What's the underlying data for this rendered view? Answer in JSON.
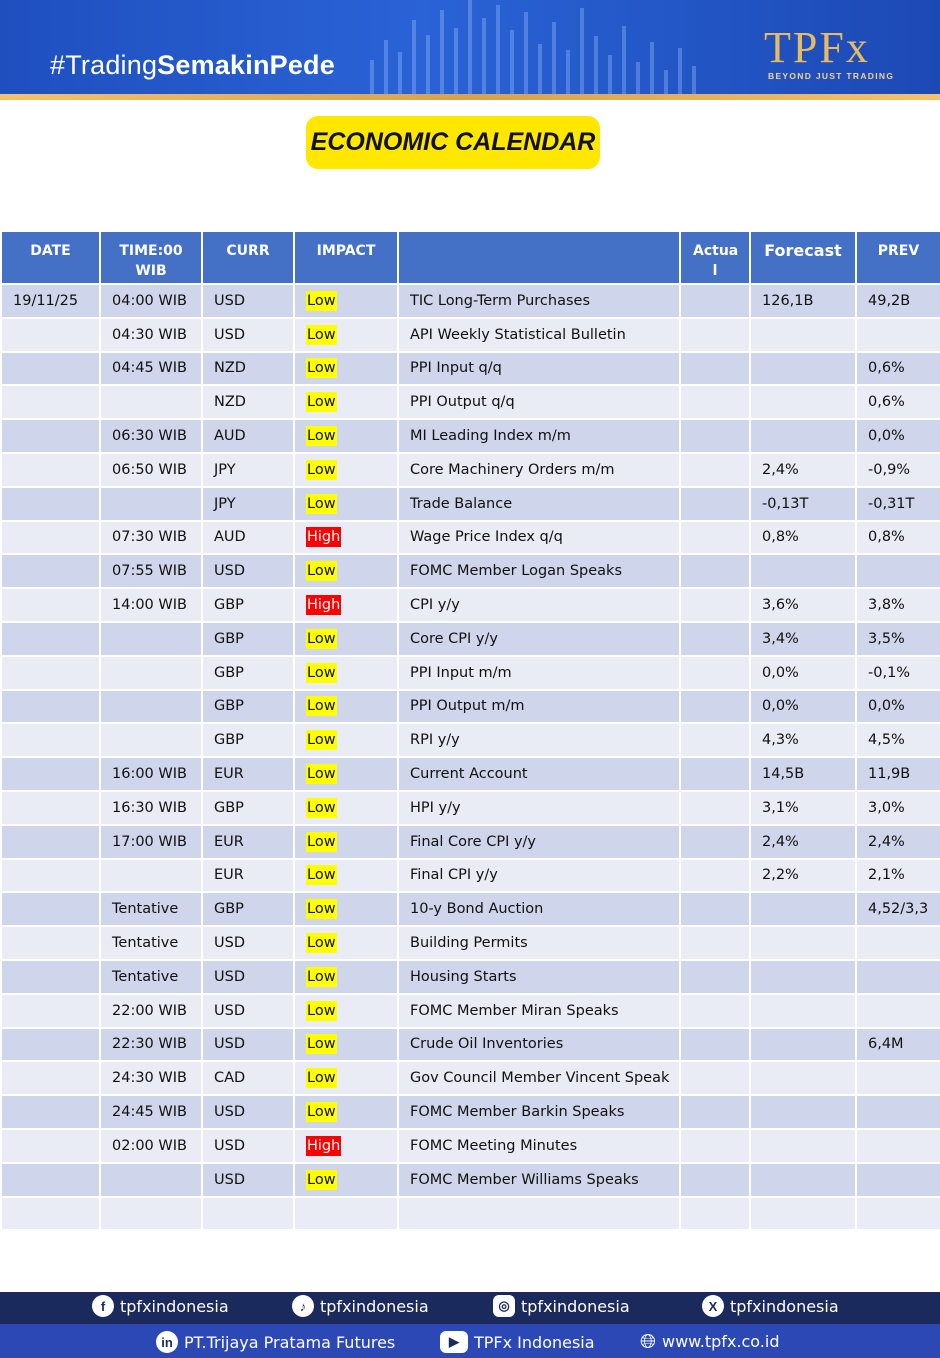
{
  "banner": {
    "hashtag_prefix": "#Trading",
    "hashtag_bold": "SemakinPede",
    "logo_main": "TPFx",
    "logo_sub": "BEYOND JUST TRADING"
  },
  "title": "ECONOMIC CALENDAR",
  "table": {
    "headers": {
      "date": "DATE",
      "time": "TIME:00 WIB",
      "curr": "CURR",
      "impact": "IMPACT",
      "event": "",
      "actual": "Actua l",
      "forecast": "Forecast",
      "prev": "PREV"
    },
    "rows": [
      {
        "date": "19/11/25",
        "time": "04:00 WIB",
        "curr": "USD",
        "impact": "Low",
        "event": "TIC Long-Term Purchases",
        "actual": "",
        "forecast": "126,1B",
        "prev": "49,2B"
      },
      {
        "date": "",
        "time": "04:30 WIB",
        "curr": "USD",
        "impact": "Low",
        "event": "API Weekly Statistical Bulletin",
        "actual": "",
        "forecast": "",
        "prev": ""
      },
      {
        "date": "",
        "time": "04:45 WIB",
        "curr": "NZD",
        "impact": "Low",
        "event": "PPI Input q/q",
        "actual": "",
        "forecast": "",
        "prev": "0,6%"
      },
      {
        "date": "",
        "time": "",
        "curr": "NZD",
        "impact": "Low",
        "event": "PPI Output q/q",
        "actual": "",
        "forecast": "",
        "prev": "0,6%"
      },
      {
        "date": "",
        "time": "06:30 WIB",
        "curr": "AUD",
        "impact": "Low",
        "event": "MI Leading Index m/m",
        "actual": "",
        "forecast": "",
        "prev": "0,0%"
      },
      {
        "date": "",
        "time": "06:50 WIB",
        "curr": "JPY",
        "impact": "Low",
        "event": "Core Machinery Orders m/m",
        "actual": "",
        "forecast": "2,4%",
        "prev": "-0,9%"
      },
      {
        "date": "",
        "time": "",
        "curr": "JPY",
        "impact": "Low",
        "event": "Trade Balance",
        "actual": "",
        "forecast": "-0,13T",
        "prev": "-0,31T"
      },
      {
        "date": "",
        "time": "07:30 WIB",
        "curr": "AUD",
        "impact": "High",
        "event": "Wage Price Index q/q",
        "actual": "",
        "forecast": "0,8%",
        "prev": "0,8%"
      },
      {
        "date": "",
        "time": "07:55 WIB",
        "curr": "USD",
        "impact": "Low",
        "event": "FOMC Member Logan Speaks",
        "actual": "",
        "forecast": "",
        "prev": ""
      },
      {
        "date": "",
        "time": "14:00 WIB",
        "curr": "GBP",
        "impact": "High",
        "event": "CPI y/y",
        "actual": "",
        "forecast": "3,6%",
        "prev": "3,8%"
      },
      {
        "date": "",
        "time": "",
        "curr": "GBP",
        "impact": "Low",
        "event": "Core CPI y/y",
        "actual": "",
        "forecast": "3,4%",
        "prev": "3,5%"
      },
      {
        "date": "",
        "time": "",
        "curr": "GBP",
        "impact": "Low",
        "event": "PPI Input m/m",
        "actual": "",
        "forecast": "0,0%",
        "prev": "-0,1%"
      },
      {
        "date": "",
        "time": "",
        "curr": "GBP",
        "impact": "Low",
        "event": "PPI Output m/m",
        "actual": "",
        "forecast": "0,0%",
        "prev": "0,0%"
      },
      {
        "date": "",
        "time": "",
        "curr": "GBP",
        "impact": "Low",
        "event": "RPI y/y",
        "actual": "",
        "forecast": "4,3%",
        "prev": "4,5%"
      },
      {
        "date": "",
        "time": "16:00 WIB",
        "curr": "EUR",
        "impact": "Low",
        "event": "Current Account",
        "actual": "",
        "forecast": "14,5B",
        "prev": "11,9B"
      },
      {
        "date": "",
        "time": "16:30 WIB",
        "curr": "GBP",
        "impact": "Low",
        "event": "HPI y/y",
        "actual": "",
        "forecast": "3,1%",
        "prev": "3,0%"
      },
      {
        "date": "",
        "time": "17:00 WIB",
        "curr": "EUR",
        "impact": "Low",
        "event": "Final Core CPI y/y",
        "actual": "",
        "forecast": "2,4%",
        "prev": "2,4%"
      },
      {
        "date": "",
        "time": "",
        "curr": "EUR",
        "impact": "Low",
        "event": "Final CPI y/y",
        "actual": "",
        "forecast": "2,2%",
        "prev": "2,1%"
      },
      {
        "date": "",
        "time": "Tentative",
        "curr": "GBP",
        "impact": "Low",
        "event": "10-y Bond Auction",
        "actual": "",
        "forecast": "",
        "prev": "4,52/3,3"
      },
      {
        "date": "",
        "time": "Tentative",
        "curr": "USD",
        "impact": "Low",
        "event": "Building Permits",
        "actual": "",
        "forecast": "",
        "prev": ""
      },
      {
        "date": "",
        "time": "Tentative",
        "curr": "USD",
        "impact": "Low",
        "event": "Housing Starts",
        "actual": "",
        "forecast": "",
        "prev": ""
      },
      {
        "date": "",
        "time": "22:00 WIB",
        "curr": "USD",
        "impact": "Low",
        "event": "FOMC Member Miran Speaks",
        "actual": "",
        "forecast": "",
        "prev": ""
      },
      {
        "date": "",
        "time": "22:30 WIB",
        "curr": "USD",
        "impact": "Low",
        "event": "Crude Oil Inventories",
        "actual": "",
        "forecast": "",
        "prev": "6,4M"
      },
      {
        "date": "",
        "time": "24:30 WIB",
        "curr": "CAD",
        "impact": "Low",
        "event": "Gov Council Member Vincent Speak",
        "actual": "",
        "forecast": "",
        "prev": ""
      },
      {
        "date": "",
        "time": "24:45 WIB",
        "curr": "USD",
        "impact": "Low",
        "event": "FOMC Member Barkin Speaks",
        "actual": "",
        "forecast": "",
        "prev": ""
      },
      {
        "date": "",
        "time": "02:00 WIB",
        "curr": "USD",
        "impact": "High",
        "event": "FOMC Meeting Minutes",
        "actual": "",
        "forecast": "",
        "prev": ""
      },
      {
        "date": "",
        "time": "",
        "curr": "USD",
        "impact": "Low",
        "event": "FOMC Member Williams Speaks",
        "actual": "",
        "forecast": "",
        "prev": ""
      },
      {
        "date": "",
        "time": "",
        "curr": "",
        "impact": "",
        "event": "",
        "actual": "",
        "forecast": "",
        "prev": ""
      }
    ]
  },
  "footer": {
    "facebook": "tpfxindonesia",
    "tiktok": "tpfxindonesia",
    "instagram": "tpfxindonesia",
    "x": "tpfxindonesia",
    "linkedin": "PT.Trijaya Pratama Futures",
    "youtube": "TPFx Indonesia",
    "website": "www.tpfx.co.id"
  },
  "icons": {
    "facebook": "facebook-icon",
    "tiktok": "tiktok-icon",
    "instagram": "instagram-icon",
    "x": "x-icon",
    "linkedin": "linkedin-icon",
    "youtube": "youtube-icon",
    "website": "globe-icon"
  },
  "colors": {
    "header_blue": "#4471c5",
    "row_dark": "#cfd5ea",
    "row_light": "#e9ebf5",
    "low_badge": "#ffff00",
    "high_badge": "#ff0000",
    "title_yellow": "#ffe700",
    "footer_navy": "#1b2a5c"
  }
}
